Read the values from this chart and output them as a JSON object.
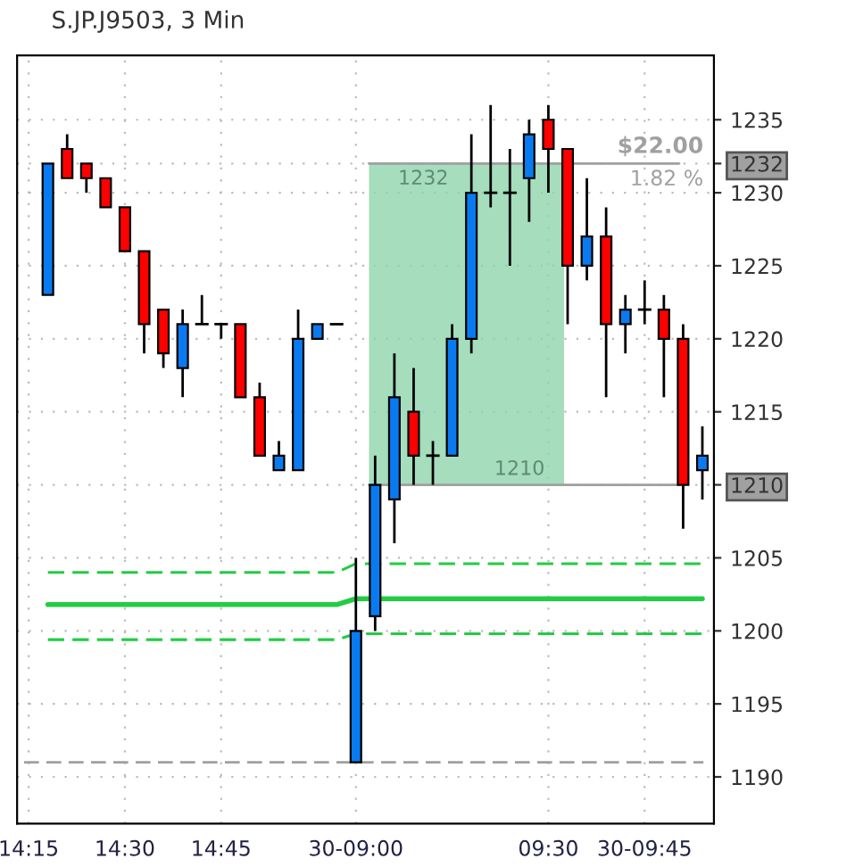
{
  "chart_data": {
    "type": "candlestick",
    "title": "S.JP.J9503, 3 Min",
    "categories": [
      "14:15",
      null,
      null,
      null,
      null,
      "14:30",
      null,
      null,
      null,
      null,
      "14:45",
      null,
      null,
      null,
      null,
      null,
      null,
      "30-09:00",
      null,
      null,
      null,
      null,
      null,
      null,
      null,
      null,
      null,
      "09:30",
      null,
      null,
      null,
      null,
      "30-09:45",
      null,
      null,
      null
    ],
    "ohlc": [
      null,
      [
        1223,
        1232,
        1223,
        1232
      ],
      [
        1233,
        1234,
        1231,
        1231
      ],
      [
        1232,
        1232,
        1230,
        1231
      ],
      [
        1231,
        1231,
        1229,
        1229
      ],
      [
        1229,
        1229,
        1226,
        1226
      ],
      [
        1226,
        1226,
        1219,
        1221
      ],
      [
        1222,
        1222,
        1218,
        1219
      ],
      [
        1218,
        1222,
        1216,
        1221
      ],
      [
        1221,
        1223,
        1221,
        1221
      ],
      [
        1221,
        1221,
        1220,
        1221
      ],
      [
        1221,
        1221,
        1216,
        1216
      ],
      [
        1216,
        1217,
        1212,
        1212
      ],
      [
        1211,
        1213,
        1211,
        1212
      ],
      [
        1211,
        1222,
        1211,
        1220
      ],
      [
        1220,
        1221,
        1220,
        1221
      ],
      [
        1221,
        1221,
        1221,
        1221
      ],
      [
        1191,
        1205,
        1191,
        1200
      ],
      [
        1201,
        1212,
        1200,
        1210
      ],
      [
        1209,
        1219,
        1206,
        1216
      ],
      [
        1215,
        1218,
        1210,
        1212
      ],
      [
        1212,
        1213,
        1210,
        1212
      ],
      [
        1212,
        1221,
        1212,
        1220
      ],
      [
        1220,
        1234,
        1219,
        1230
      ],
      [
        1230,
        1236,
        1229,
        1230
      ],
      [
        1230,
        1233,
        1225,
        1230
      ],
      [
        1231,
        1235,
        1228,
        1234
      ],
      [
        1235,
        1236,
        1230,
        1233
      ],
      [
        1233,
        1233,
        1221,
        1225
      ],
      [
        1225,
        1231,
        1224,
        1227
      ],
      [
        1227,
        1229,
        1216,
        1221
      ],
      [
        1221,
        1223,
        1219,
        1222
      ],
      [
        1222,
        1224,
        1221,
        1222
      ],
      [
        1222,
        1223,
        1216,
        1220
      ],
      [
        1220,
        1221,
        1207,
        1210
      ],
      [
        1211,
        1214,
        1209,
        1212
      ]
    ],
    "colors": [
      null,
      "#0a7af0",
      "#ff0000",
      "#ff0000",
      "#ff0000",
      "#ff0000",
      "#ff0000",
      "#ff0000",
      "#0a7af0",
      null,
      null,
      "#ff0000",
      "#ff0000",
      "#0a7af0",
      "#0a7af0",
      "#0a7af0",
      null,
      "#0a7af0",
      "#0a7af0",
      "#0a7af0",
      "#ff0000",
      null,
      "#0a7af0",
      "#0a7af0",
      null,
      null,
      "#0a7af0",
      "#ff0000",
      "#ff0000",
      "#0a7af0",
      "#ff0000",
      "#0a7af0",
      null,
      "#ff0000",
      "#ff0000",
      "#0a7af0"
    ],
    "series": [
      {
        "type": "line",
        "line_style": "dashed",
        "color": "#22cc44",
        "values": [
          null,
          1204.0,
          1204.0,
          1204.0,
          1204.0,
          1204.0,
          1204.0,
          1204.0,
          1204.0,
          1204.0,
          1204.0,
          1204.0,
          1204.0,
          1204.0,
          1204.0,
          1204.0,
          1204.0,
          1204.6,
          1204.6,
          1204.6,
          1204.6,
          1204.6,
          1204.6,
          1204.6,
          1204.6,
          1204.6,
          1204.6,
          1204.6,
          1204.6,
          1204.6,
          1204.6,
          1204.6,
          1204.6,
          1204.6,
          1204.6,
          1204.6
        ]
      },
      {
        "type": "line",
        "line_style": "solid",
        "color": "#22cc44",
        "values": [
          null,
          1201.8,
          1201.8,
          1201.8,
          1201.8,
          1201.8,
          1201.8,
          1201.8,
          1201.8,
          1201.8,
          1201.8,
          1201.8,
          1201.8,
          1201.8,
          1201.8,
          1201.8,
          1201.8,
          1202.2,
          1202.2,
          1202.2,
          1202.2,
          1202.2,
          1202.2,
          1202.2,
          1202.2,
          1202.2,
          1202.2,
          1202.2,
          1202.2,
          1202.2,
          1202.2,
          1202.2,
          1202.2,
          1202.2,
          1202.2,
          1202.2
        ]
      },
      {
        "type": "line",
        "line_style": "dashed",
        "color": "#22cc44",
        "values": [
          null,
          1199.4,
          1199.4,
          1199.4,
          1199.4,
          1199.4,
          1199.4,
          1199.4,
          1199.4,
          1199.4,
          1199.4,
          1199.4,
          1199.4,
          1199.4,
          1199.4,
          1199.4,
          1199.4,
          1199.8,
          1199.8,
          1199.8,
          1199.8,
          1199.8,
          1199.8,
          1199.8,
          1199.8,
          1199.8,
          1199.8,
          1199.8,
          1199.8,
          1199.8,
          1199.8,
          1199.8,
          1199.8,
          1199.8,
          1199.8,
          1199.8
        ]
      }
    ],
    "ref_lines": [
      {
        "axis": "y",
        "value": 1191,
        "color": "#a0a0a0",
        "line_style": "dashed"
      },
      {
        "axis": "y",
        "value": 1232,
        "label": "1232",
        "color": "#a0a0a0",
        "line_style": "solid"
      },
      {
        "axis": "y",
        "value": 1210,
        "label": "1210",
        "color": "#a0a0a0",
        "line_style": "solid"
      }
    ],
    "bands": [
      {
        "axis": "y",
        "from": 1210,
        "to": 1232,
        "label": "$22.00",
        "color": "#8fd4ac"
      }
    ],
    "annotations": [
      "1.82 %"
    ],
    "ylim": [
      1186.8,
      1239.4
    ],
    "yticks": [
      1190,
      1195,
      1200,
      1205,
      1210,
      1215,
      1220,
      1225,
      1230,
      {
        "value": 1232,
        "label": "1232"
      },
      1235
    ],
    "grid": true,
    "legend": false
  }
}
